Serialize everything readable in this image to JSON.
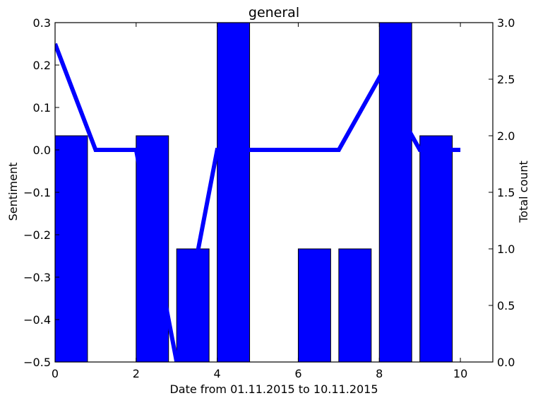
{
  "chart_data": {
    "type": "bar",
    "title": "general",
    "xlabel": "Date from 01.11.2015 to 10.11.2015",
    "ylabel_left": "Sentiment",
    "ylabel_right": "Total count",
    "xlim": [
      0,
      10.8
    ],
    "ylim_left": [
      -0.5,
      0.3
    ],
    "ylim_right": [
      0.0,
      3.0
    ],
    "x_ticks": [
      0,
      2,
      4,
      6,
      8,
      10
    ],
    "x_tick_labels": [
      "0",
      "2",
      "4",
      "6",
      "8",
      "10"
    ],
    "left_ticks": [
      0.3,
      0.2,
      0.1,
      0.0,
      -0.1,
      -0.2,
      -0.3,
      -0.4,
      -0.5
    ],
    "left_tick_labels": [
      "0.3",
      "0.2",
      "0.1",
      "0.0",
      "−0.1",
      "−0.2",
      "−0.3",
      "−0.4",
      "−0.5"
    ],
    "right_ticks": [
      3.0,
      2.5,
      2.0,
      1.5,
      1.0,
      0.5,
      0.0
    ],
    "right_tick_labels": [
      "3.0",
      "2.5",
      "2.0",
      "1.5",
      "1.0",
      "0.5",
      "0.0"
    ],
    "bar_width": 0.8,
    "bars": {
      "name": "Total count",
      "axis": "right",
      "x": [
        0,
        1,
        2,
        3,
        4,
        5,
        6,
        7,
        8,
        9
      ],
      "values": [
        2,
        0,
        2,
        1,
        3,
        0,
        1,
        1,
        3,
        2
      ]
    },
    "line": {
      "name": "Sentiment",
      "axis": "left",
      "x": [
        0,
        1,
        2,
        3,
        4,
        5,
        6,
        7,
        8,
        9,
        10
      ],
      "values": [
        0.25,
        0.0,
        0.0,
        -0.5,
        0.0,
        0.0,
        0.0,
        0.0,
        0.17,
        0.0,
        0.0
      ]
    },
    "colors": {
      "bar": "#0000ff",
      "line": "#0000ff",
      "axes": "#000000"
    },
    "grid": false
  }
}
